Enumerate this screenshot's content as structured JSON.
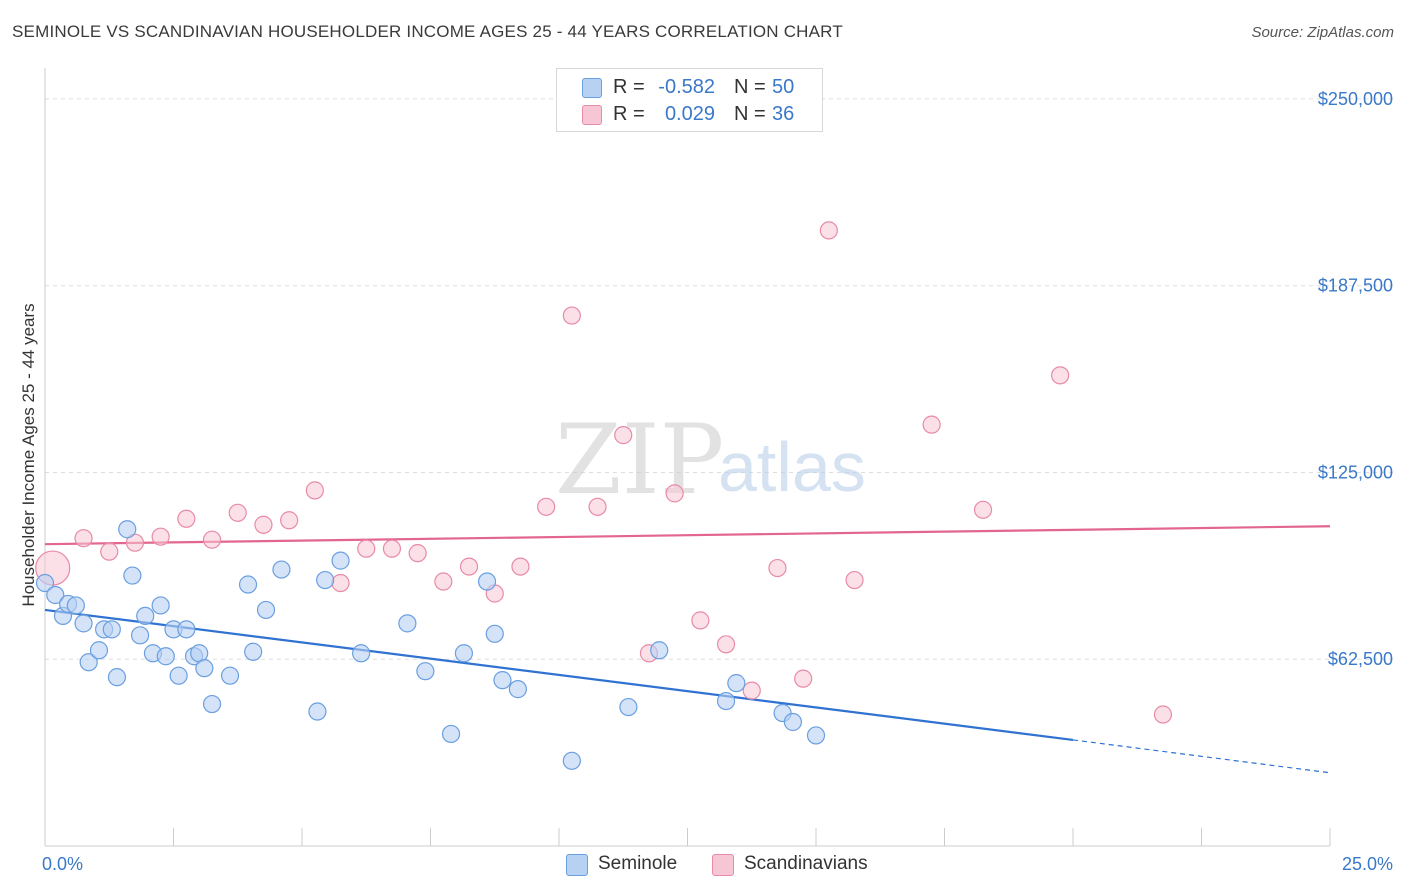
{
  "title": "SEMINOLE VS SCANDINAVIAN HOUSEHOLDER INCOME AGES 25 - 44 YEARS CORRELATION CHART",
  "source": "Source: ZipAtlas.com",
  "watermark": {
    "zip": "ZIP",
    "atlas": "atlas"
  },
  "legend": {
    "seminole": {
      "r_label": "R =",
      "r_value": "-0.582",
      "n_label": "N =",
      "n_value": "50"
    },
    "scandinavians": {
      "r_label": "R =",
      "r_value": "0.029",
      "n_label": "N =",
      "n_value": "36"
    }
  },
  "bottom_legend": {
    "seminole": "Seminole",
    "scandinavians": "Scandinavians"
  },
  "colors": {
    "seminole_fill": "#b7d1f3",
    "seminole_stroke": "#6a9fe0",
    "seminole_line": "#2f72d2",
    "scand_fill": "#f7c6d4",
    "scand_stroke": "#e88aa8",
    "scand_line": "#e2668f",
    "tick_label": "#3a78c9"
  },
  "chart_data": {
    "type": "scatter",
    "title": "SEMINOLE VS SCANDINAVIAN HOUSEHOLDER INCOME AGES 25 - 44 YEARS CORRELATION CHART",
    "xlabel": "",
    "ylabel": "Householder Income Ages 25 - 44 years",
    "xlim": [
      0,
      25
    ],
    "ylim": [
      0,
      257000
    ],
    "x_tick_labels": [
      "0.0%",
      "25.0%"
    ],
    "y_ticks": [
      62500,
      125000,
      187500,
      250000
    ],
    "y_tick_labels": [
      "$62,500",
      "$125,000",
      "$187,500",
      "$250,000"
    ],
    "grid": true,
    "series": [
      {
        "name": "Seminole",
        "trend": {
          "x": [
            0.0,
            20.0
          ],
          "y": [
            79000,
            35500
          ],
          "dashed_to": [
            25.0,
            24500
          ]
        },
        "points": [
          [
            0.0,
            88000
          ],
          [
            0.2,
            84000
          ],
          [
            0.35,
            77000
          ],
          [
            0.45,
            81000
          ],
          [
            0.6,
            80500
          ],
          [
            0.75,
            74500
          ],
          [
            0.85,
            61500
          ],
          [
            1.05,
            65500
          ],
          [
            1.15,
            72500
          ],
          [
            1.3,
            72500
          ],
          [
            1.4,
            56500
          ],
          [
            1.6,
            106000
          ],
          [
            1.7,
            90500
          ],
          [
            1.85,
            70500
          ],
          [
            1.95,
            77000
          ],
          [
            2.1,
            64500
          ],
          [
            2.25,
            80500
          ],
          [
            2.35,
            63500
          ],
          [
            2.5,
            72500
          ],
          [
            2.6,
            57000
          ],
          [
            2.75,
            72500
          ],
          [
            2.9,
            63500
          ],
          [
            3.0,
            64500
          ],
          [
            3.1,
            59500
          ],
          [
            3.25,
            47500
          ],
          [
            3.6,
            57000
          ],
          [
            3.95,
            87500
          ],
          [
            4.05,
            65000
          ],
          [
            4.3,
            79000
          ],
          [
            4.6,
            92500
          ],
          [
            5.3,
            45000
          ],
          [
            5.45,
            89000
          ],
          [
            5.75,
            95500
          ],
          [
            6.15,
            64500
          ],
          [
            7.05,
            74500
          ],
          [
            7.4,
            58500
          ],
          [
            7.9,
            37500
          ],
          [
            8.15,
            64500
          ],
          [
            8.6,
            88500
          ],
          [
            8.75,
            71000
          ],
          [
            8.9,
            55500
          ],
          [
            9.2,
            52500
          ],
          [
            10.25,
            28500
          ],
          [
            11.35,
            46500
          ],
          [
            11.95,
            65500
          ],
          [
            13.25,
            48500
          ],
          [
            13.45,
            54500
          ],
          [
            14.35,
            44500
          ],
          [
            14.55,
            41500
          ],
          [
            15.0,
            37000
          ]
        ]
      },
      {
        "name": "Scandinavians",
        "trend": {
          "x": [
            0.0,
            25.0
          ],
          "y": [
            101000,
            107000
          ]
        },
        "points": [
          [
            0.15,
            93000
          ],
          [
            0.75,
            103000
          ],
          [
            1.25,
            98500
          ],
          [
            1.75,
            101500
          ],
          [
            2.25,
            103500
          ],
          [
            2.75,
            109500
          ],
          [
            3.25,
            102500
          ],
          [
            3.75,
            111500
          ],
          [
            4.25,
            107500
          ],
          [
            4.75,
            109000
          ],
          [
            5.25,
            119000
          ],
          [
            5.75,
            88000
          ],
          [
            6.25,
            99500
          ],
          [
            6.75,
            99500
          ],
          [
            7.25,
            98000
          ],
          [
            7.75,
            88500
          ],
          [
            8.25,
            93500
          ],
          [
            8.75,
            84500
          ],
          [
            9.25,
            93500
          ],
          [
            9.75,
            113500
          ],
          [
            10.25,
            177500
          ],
          [
            10.75,
            113500
          ],
          [
            11.25,
            137500
          ],
          [
            11.75,
            64500
          ],
          [
            12.25,
            118000
          ],
          [
            12.75,
            75500
          ],
          [
            13.25,
            67500
          ],
          [
            13.75,
            52000
          ],
          [
            14.25,
            93000
          ],
          [
            14.75,
            56000
          ],
          [
            15.25,
            206000
          ],
          [
            15.75,
            89000
          ],
          [
            17.25,
            141000
          ],
          [
            18.25,
            112500
          ],
          [
            19.75,
            157500
          ],
          [
            21.75,
            44000
          ]
        ]
      }
    ]
  }
}
